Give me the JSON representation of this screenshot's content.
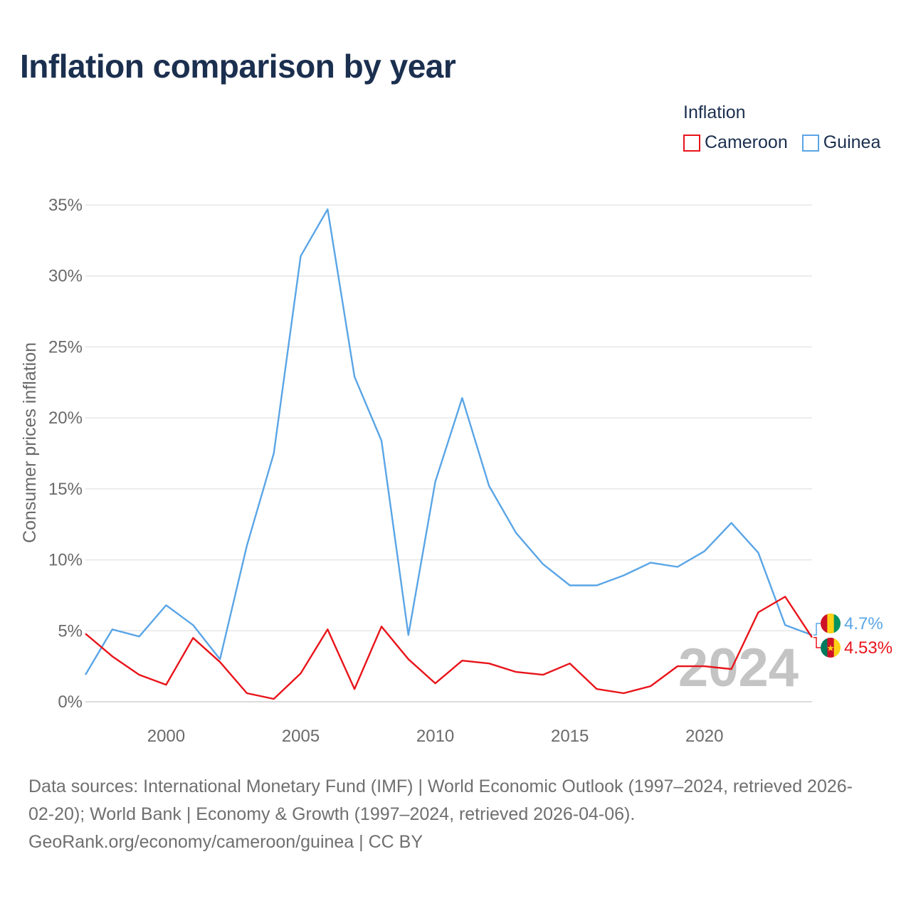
{
  "title": "Inflation comparison by year",
  "legend": {
    "title": "Inflation",
    "items": [
      {
        "label": "Cameroon",
        "color": "#e8141a"
      },
      {
        "label": "Guinea",
        "color": "#5aa5e6"
      }
    ]
  },
  "chart_data": {
    "type": "line",
    "title": "Inflation comparison by year",
    "xlabel": "",
    "ylabel": "Consumer prices inflation",
    "xlim": [
      1997,
      2024
    ],
    "ylim": [
      0,
      35
    ],
    "x_ticks": [
      2000,
      2005,
      2010,
      2015,
      2020
    ],
    "x_tick_labels": [
      "2000",
      "2005",
      "2010",
      "2015",
      "2020"
    ],
    "y_ticks": [
      0,
      5,
      10,
      15,
      20,
      25,
      30,
      35
    ],
    "y_tick_labels": [
      "0%",
      "5%",
      "10%",
      "15%",
      "20%",
      "25%",
      "30%",
      "35%"
    ],
    "grid": true,
    "x": [
      1997,
      1998,
      1999,
      2000,
      2001,
      2002,
      2003,
      2004,
      2005,
      2006,
      2007,
      2008,
      2009,
      2010,
      2011,
      2012,
      2013,
      2014,
      2015,
      2016,
      2017,
      2018,
      2019,
      2020,
      2021,
      2022,
      2023,
      2024
    ],
    "series": [
      {
        "name": "Cameroon",
        "color": "#e8141a",
        "end_label": "4.53%",
        "values": [
          4.8,
          3.2,
          1.9,
          1.2,
          4.5,
          2.8,
          0.6,
          0.2,
          2.0,
          5.1,
          0.9,
          5.3,
          3.0,
          1.3,
          2.9,
          2.7,
          2.1,
          1.9,
          2.7,
          0.9,
          0.6,
          1.1,
          2.5,
          2.5,
          2.3,
          6.3,
          7.4,
          4.53
        ]
      },
      {
        "name": "Guinea",
        "color": "#5aa5e6",
        "end_label": "4.7%",
        "values": [
          1.9,
          5.1,
          4.6,
          6.8,
          5.4,
          3.0,
          11.0,
          17.5,
          31.4,
          34.7,
          22.9,
          18.4,
          4.7,
          15.5,
          21.4,
          15.2,
          11.9,
          9.7,
          8.2,
          8.2,
          8.9,
          9.8,
          9.5,
          10.6,
          12.6,
          10.5,
          5.4,
          4.7
        ]
      }
    ],
    "annotation": "2024"
  },
  "sources": {
    "line1": "Data sources: International Monetary Fund (IMF) | World Economic Outlook (1997–2024, retrieved 2026-",
    "line2": "02-20); World Bank | Economy & Growth (1997–2024, retrieved 2026-04-06).",
    "line3": "GeoRank.org/economy/cameroon/guinea | CC BY"
  }
}
